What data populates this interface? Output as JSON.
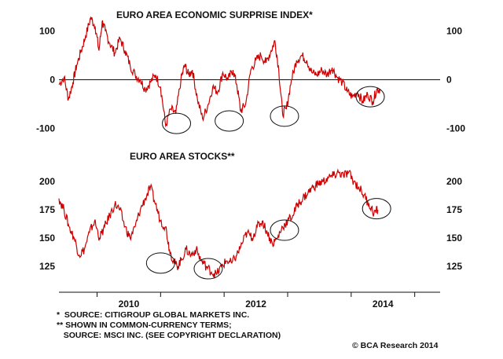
{
  "colors": {
    "series": "#cc0000",
    "axis": "#111111",
    "annotation": "#111111",
    "background": "#ffffff"
  },
  "footnotes": {
    "line1": "*  SOURCE: CITIGROUP GLOBAL MARKETS INC.",
    "line2": "** SHOWN IN COMMON-CURRENCY TERMS;",
    "line3": "   SOURCE: MSCI INC. (SEE COPYRIGHT DECLARATION)"
  },
  "copyright": "© BCA Research 2014",
  "chart_data": [
    {
      "type": "line",
      "title": "EURO AREA ECONOMIC SURPRISE INDEX*",
      "xlabel": "",
      "ylabel": "",
      "x_ticks": [
        "2010",
        "2012",
        "2014"
      ],
      "y_ticks": [
        100,
        0,
        -100
      ],
      "ylim": [
        -140,
        140
      ],
      "xlim": [
        2009.4,
        2015.4
      ],
      "reference_line": 0,
      "grid": false,
      "series": [
        {
          "x": [
            2009.4,
            2009.48,
            2009.55,
            2009.62,
            2009.68,
            2009.75,
            2009.82,
            2009.9,
            2009.97,
            2010.03,
            2010.08,
            2010.13,
            2010.2,
            2010.28,
            2010.36,
            2010.44,
            2010.52,
            2010.6,
            2010.68,
            2010.76,
            2010.84,
            2010.92,
            2011.0,
            2011.08,
            2011.16,
            2011.24,
            2011.32,
            2011.38,
            2011.44,
            2011.5,
            2011.58,
            2011.66,
            2011.74,
            2011.82,
            2011.9,
            2011.98,
            2012.06,
            2012.14,
            2012.2,
            2012.26,
            2012.34,
            2012.42,
            2012.5,
            2012.58,
            2012.66,
            2012.74,
            2012.8,
            2012.86,
            2012.92,
            2012.98,
            2013.06,
            2013.14,
            2013.22,
            2013.3,
            2013.38,
            2013.46,
            2013.54,
            2013.62,
            2013.7,
            2013.78,
            2013.86,
            2013.94,
            2014.02,
            2014.1,
            2014.18,
            2014.26,
            2014.34,
            2014.4,
            2014.46
          ],
          "values": [
            -10,
            5,
            -40,
            -5,
            30,
            60,
            90,
            128,
            110,
            60,
            120,
            100,
            75,
            55,
            85,
            60,
            30,
            10,
            0,
            -20,
            -5,
            10,
            -15,
            -95,
            -60,
            -70,
            0,
            30,
            10,
            20,
            -40,
            -80,
            -55,
            -15,
            -25,
            15,
            0,
            20,
            -10,
            -65,
            -50,
            20,
            40,
            50,
            35,
            60,
            80,
            20,
            -70,
            -60,
            0,
            40,
            50,
            40,
            15,
            10,
            20,
            10,
            25,
            5,
            -5,
            -25,
            -35,
            -25,
            -45,
            -30,
            -45,
            -20,
            -20
          ]
        }
      ],
      "annotations": [
        {
          "label": "",
          "x": 2011.25,
          "y": -90
        },
        {
          "label": "",
          "x": 2012.08,
          "y": -85
        },
        {
          "label": "",
          "x": 2012.95,
          "y": -75
        },
        {
          "label": "",
          "x": 2014.3,
          "y": -35
        }
      ]
    },
    {
      "type": "line",
      "title": "EURO AREA STOCKS**",
      "xlabel": "",
      "ylabel": "",
      "x_ticks": [
        "2010",
        "2012",
        "2014"
      ],
      "y_ticks": [
        200,
        175,
        150,
        125
      ],
      "ylim": [
        105,
        225
      ],
      "xlim": [
        2009.4,
        2015.4
      ],
      "grid": false,
      "series": [
        {
          "x": [
            2009.4,
            2009.48,
            2009.56,
            2009.64,
            2009.72,
            2009.8,
            2009.88,
            2009.96,
            2010.04,
            2010.12,
            2010.2,
            2010.28,
            2010.36,
            2010.44,
            2010.52,
            2010.6,
            2010.68,
            2010.76,
            2010.84,
            2010.92,
            2011.0,
            2011.08,
            2011.14,
            2011.2,
            2011.26,
            2011.32,
            2011.4,
            2011.48,
            2011.56,
            2011.64,
            2011.72,
            2011.8,
            2011.88,
            2011.96,
            2012.04,
            2012.12,
            2012.2,
            2012.28,
            2012.36,
            2012.44,
            2012.52,
            2012.6,
            2012.68,
            2012.76,
            2012.84,
            2012.92,
            2013.0,
            2013.08,
            2013.16,
            2013.24,
            2013.32,
            2013.4,
            2013.48,
            2013.56,
            2013.64,
            2013.72,
            2013.8,
            2013.88,
            2013.96,
            2014.04,
            2014.12,
            2014.2,
            2014.28,
            2014.36,
            2014.42
          ],
          "values": [
            185,
            175,
            160,
            150,
            135,
            140,
            155,
            165,
            150,
            160,
            170,
            180,
            175,
            160,
            150,
            160,
            175,
            185,
            195,
            180,
            165,
            160,
            140,
            130,
            125,
            130,
            140,
            135,
            140,
            130,
            125,
            120,
            118,
            125,
            130,
            128,
            135,
            145,
            155,
            150,
            160,
            165,
            155,
            145,
            150,
            160,
            165,
            170,
            180,
            185,
            190,
            195,
            198,
            200,
            203,
            205,
            208,
            205,
            208,
            200,
            195,
            188,
            180,
            172,
            175
          ]
        }
      ],
      "annotations": [
        {
          "label": "",
          "x": 2011.0,
          "y": 128
        },
        {
          "label": "",
          "x": 2011.75,
          "y": 123
        },
        {
          "label": "",
          "x": 2012.95,
          "y": 157
        },
        {
          "label": "",
          "x": 2014.4,
          "y": 176
        }
      ]
    }
  ]
}
